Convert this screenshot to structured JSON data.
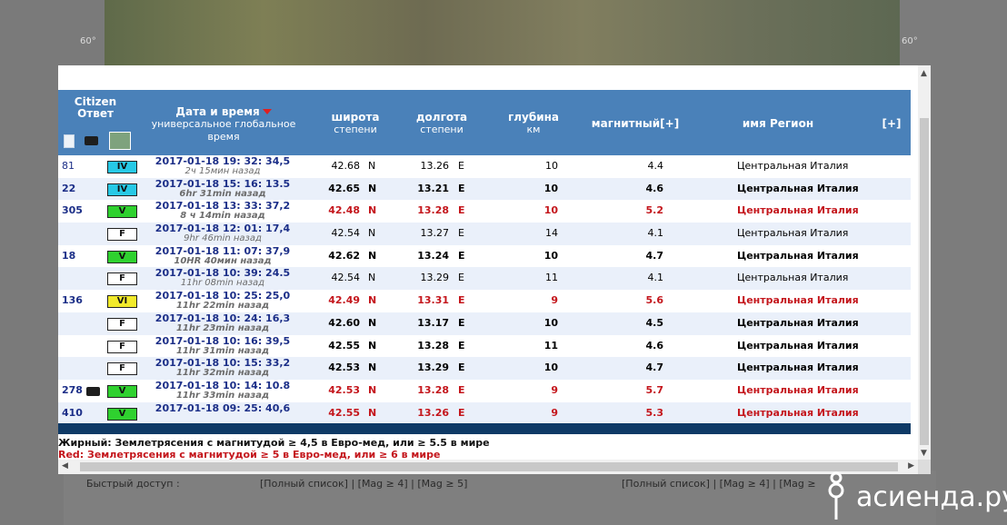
{
  "background": {
    "grid_label_left": "60°",
    "grid_label_right": "60°",
    "quick_access_left": "Быстрый доступ :",
    "quick_links_left": "[Полный список] | [Mag ≥ 4] | [Mag ≥ 5]",
    "quick_links_right": "[Полный список] | [Mag ≥ 4] | [Mag ≥"
  },
  "header": {
    "citizen": "Citizen",
    "otvet": "Ответ",
    "datetime_title": "Дата и время",
    "datetime_sub1": "универсальное глобальное",
    "datetime_sub2": "время",
    "lat_title": "широта",
    "lat_sub": "степени",
    "lon_title": "долгота",
    "lon_sub": "степени",
    "depth_title": "глубина",
    "depth_sub": "км",
    "mag_title": "магнитный[+]",
    "region_title": "имя Регион",
    "expand": "[+]"
  },
  "rows": [
    {
      "cid": "81",
      "badge": "IV",
      "bcolor": "#27c9e6",
      "cam": false,
      "dt": "2017-01-18 19: 32: 34,5",
      "ago": "2ч 15мин назад",
      "lat": "42.68",
      "ns": "N",
      "lon": "13.26",
      "ew": "E",
      "depth": "10",
      "mag": "4.4",
      "region": "Центральная Италия",
      "style": "light"
    },
    {
      "cid": "22",
      "badge": "IV",
      "bcolor": "#27c9e6",
      "cam": false,
      "dt": "2017-01-18 15: 16: 13.5",
      "ago": "6hr 31min назад",
      "lat": "42.65",
      "ns": "N",
      "lon": "13.21",
      "ew": "E",
      "depth": "10",
      "mag": "4.6",
      "region": "Центральная Италия",
      "style": "bold"
    },
    {
      "cid": "305",
      "badge": "V",
      "bcolor": "#2fd12f",
      "cam": false,
      "dt": "2017-01-18 13: 33: 37,2",
      "ago": "8 ч 14min назад",
      "lat": "42.48",
      "ns": "N",
      "lon": "13.28",
      "ew": "E",
      "depth": "10",
      "mag": "5.2",
      "region": "Центральная Италия",
      "style": "red"
    },
    {
      "cid": "",
      "badge": "F",
      "bcolor": "#ffffff",
      "cam": false,
      "dt": "2017-01-18 12: 01: 17,4",
      "ago": "9hr 46min назад",
      "lat": "42.54",
      "ns": "N",
      "lon": "13.27",
      "ew": "E",
      "depth": "14",
      "mag": "4.1",
      "region": "Центральная Италия",
      "style": "light"
    },
    {
      "cid": "18",
      "badge": "V",
      "bcolor": "#2fd12f",
      "cam": false,
      "dt": "2017-01-18 11: 07: 37,9",
      "ago": "10HR 40мин назад",
      "lat": "42.62",
      "ns": "N",
      "lon": "13.24",
      "ew": "E",
      "depth": "10",
      "mag": "4.7",
      "region": "Центральная Италия",
      "style": "bold"
    },
    {
      "cid": "",
      "badge": "F",
      "bcolor": "#ffffff",
      "cam": false,
      "dt": "2017-01-18 10: 39: 24.5",
      "ago": "11hr 08min назад",
      "lat": "42.54",
      "ns": "N",
      "lon": "13.29",
      "ew": "E",
      "depth": "11",
      "mag": "4.1",
      "region": "Центральная Италия",
      "style": "light"
    },
    {
      "cid": "136",
      "badge": "VI",
      "bcolor": "#f2ea2a",
      "cam": false,
      "dt": "2017-01-18 10: 25: 25,0",
      "ago": "11hr 22min назад",
      "lat": "42.49",
      "ns": "N",
      "lon": "13.31",
      "ew": "E",
      "depth": "9",
      "mag": "5.6",
      "region": "Центральная Италия",
      "style": "red"
    },
    {
      "cid": "",
      "badge": "F",
      "bcolor": "#ffffff",
      "cam": false,
      "dt": "2017-01-18 10: 24: 16,3",
      "ago": "11hr 23min назад",
      "lat": "42.60",
      "ns": "N",
      "lon": "13.17",
      "ew": "E",
      "depth": "10",
      "mag": "4.5",
      "region": "Центральная Италия",
      "style": "bold"
    },
    {
      "cid": "",
      "badge": "F",
      "bcolor": "#ffffff",
      "cam": false,
      "dt": "2017-01-18 10: 16: 39,5",
      "ago": "11hr 31min назад",
      "lat": "42.55",
      "ns": "N",
      "lon": "13.28",
      "ew": "E",
      "depth": "11",
      "mag": "4.6",
      "region": "Центральная Италия",
      "style": "bold"
    },
    {
      "cid": "",
      "badge": "F",
      "bcolor": "#ffffff",
      "cam": false,
      "dt": "2017-01-18 10: 15: 33,2",
      "ago": "11hr 32min назад",
      "lat": "42.53",
      "ns": "N",
      "lon": "13.29",
      "ew": "E",
      "depth": "10",
      "mag": "4.7",
      "region": "Центральная Италия",
      "style": "bold"
    },
    {
      "cid": "278",
      "badge": "V",
      "bcolor": "#2fd12f",
      "cam": true,
      "dt": "2017-01-18 10: 14: 10.8",
      "ago": "11hr 33min назад",
      "lat": "42.53",
      "ns": "N",
      "lon": "13.28",
      "ew": "E",
      "depth": "9",
      "mag": "5.7",
      "region": "Центральная Италия",
      "style": "red"
    },
    {
      "cid": "410",
      "badge": "V",
      "bcolor": "#2fd12f",
      "cam": false,
      "dt": "2017-01-18 09: 25: 40,6",
      "ago": "",
      "lat": "42.55",
      "ns": "N",
      "lon": "13.26",
      "ew": "E",
      "depth": "9",
      "mag": "5.3",
      "region": "Центральная Италия",
      "style": "red"
    }
  ],
  "legend": {
    "line1": "Жирный: Землетрясения с магнитудой ≥ 4,5 в Евро-мед, или ≥ 5.5 в мире",
    "line2": "Red: Землетрясения с магнитудой ≥ 5 в Евро-мед, или ≥ 6 в мире"
  },
  "watermark": {
    "text": "асиенда.ру"
  },
  "colors": {
    "header_bg": "#4a81b9",
    "alt_row": "#eaf0fa",
    "red": "#c4161c",
    "footer_bar": "#0f3a66"
  }
}
